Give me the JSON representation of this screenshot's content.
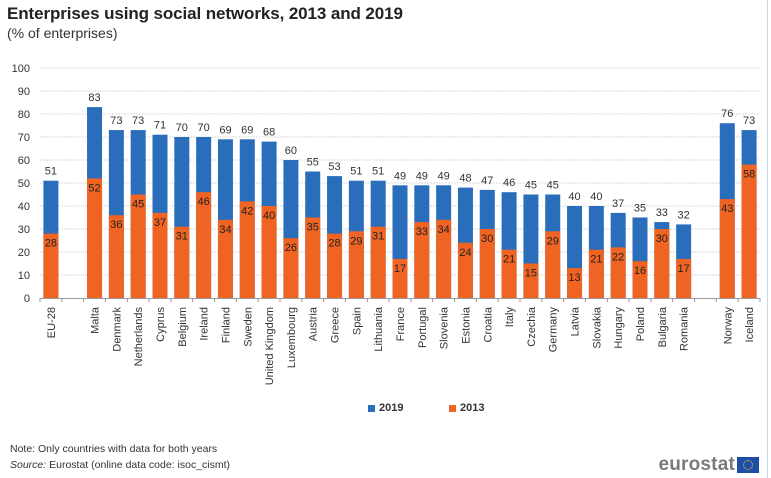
{
  "header": {
    "title": "Enterprises using social networks, 2013 and 2019",
    "subtitle": "(% of enterprises)"
  },
  "legend": {
    "items": [
      {
        "label": "2019",
        "color": "#2a6ebb"
      },
      {
        "label": "2013",
        "color": "#f06423"
      }
    ]
  },
  "footer": {
    "note": "Note: Only countries with data for  both years",
    "source_label": "Source:",
    "source_text": " Eurostat (online data code: isoc_cismt)",
    "logo_text": "eurostat"
  },
  "chart_data": {
    "type": "bar",
    "stacked": "overlay",
    "title": "Enterprises using social networks, 2013 and 2019",
    "subtitle": "(% of enterprises)",
    "xlabel": "",
    "ylabel": "",
    "ylim": [
      0,
      100
    ],
    "yticks": [
      0,
      10,
      20,
      30,
      40,
      50,
      60,
      70,
      80,
      90,
      100
    ],
    "grid": true,
    "legend_position": "bottom",
    "categories": [
      "EU-28",
      "",
      "Malta",
      "Denmark",
      "Netherlands",
      "Cyprus",
      "Belgium",
      "Ireland",
      "Finland",
      "Sweden",
      "United Kingdom",
      "Luxembourg",
      "Austria",
      "Greece",
      "Spain",
      "Lithuania",
      "France",
      "Portugal",
      "Slovenia",
      "Estonia",
      "Croatia",
      "Italy",
      "Czechia",
      "Germany",
      "Latvia",
      "Slovakia",
      "Hungary",
      "Poland",
      "Bulgaria",
      "Romania",
      "",
      "Norway",
      "Iceland"
    ],
    "series": [
      {
        "name": "2019",
        "color": "#2a6ebb",
        "values": [
          51,
          null,
          83,
          73,
          73,
          71,
          70,
          70,
          69,
          69,
          68,
          60,
          55,
          53,
          51,
          51,
          49,
          49,
          49,
          48,
          47,
          46,
          45,
          45,
          40,
          40,
          37,
          35,
          33,
          32,
          null,
          76,
          73
        ]
      },
      {
        "name": "2013",
        "color": "#f06423",
        "values": [
          28,
          null,
          52,
          36,
          45,
          37,
          31,
          46,
          34,
          42,
          40,
          26,
          35,
          28,
          29,
          31,
          17,
          33,
          34,
          24,
          30,
          21,
          15,
          29,
          13,
          21,
          22,
          16,
          30,
          17,
          null,
          43,
          58
        ]
      }
    ]
  }
}
